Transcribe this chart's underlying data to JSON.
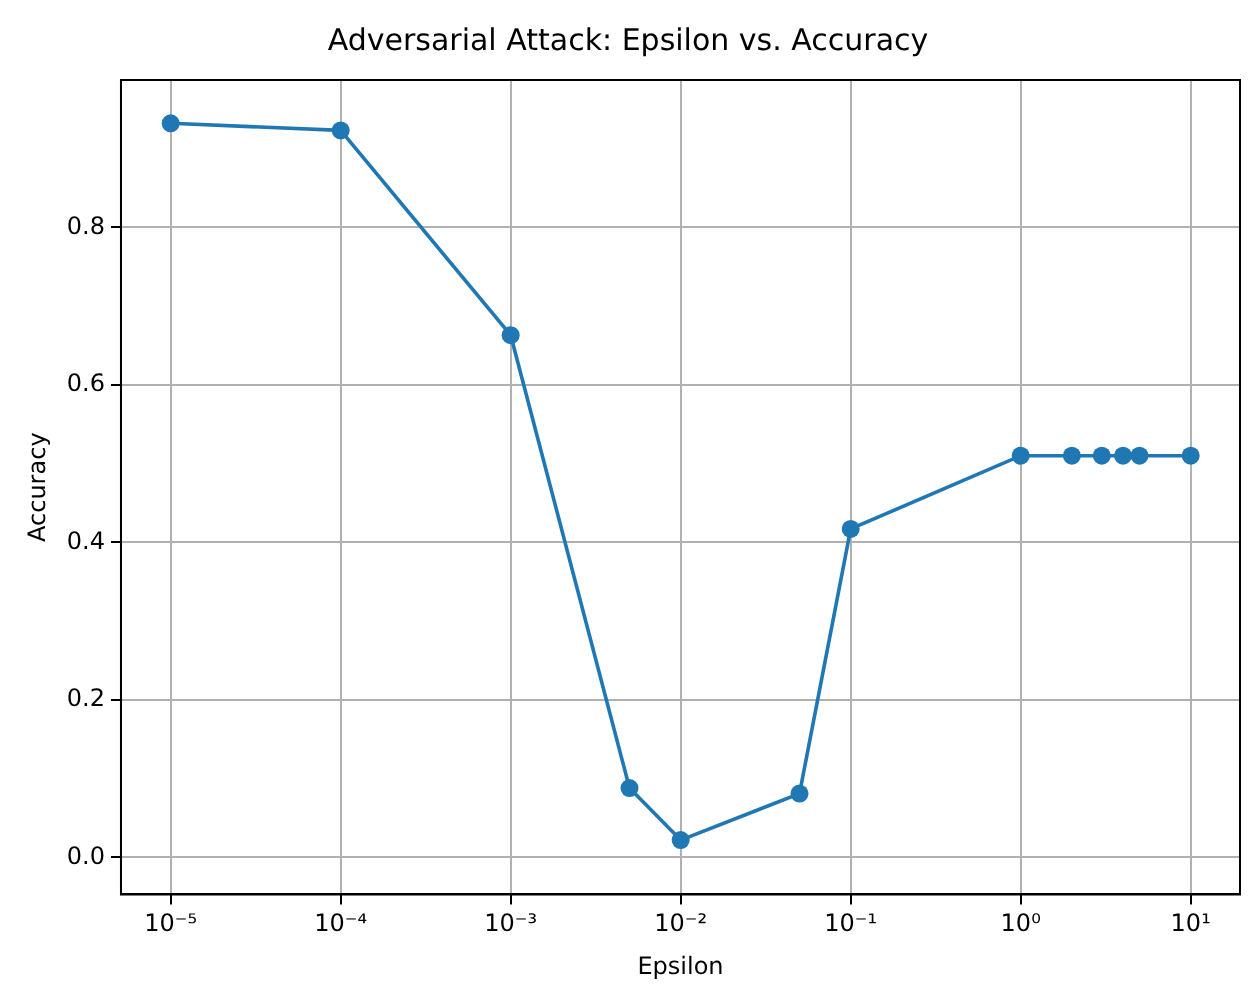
{
  "chart_data": {
    "type": "line",
    "title": "Adversarial Attack: Epsilon vs. Accuracy",
    "xlabel": "Epsilon",
    "ylabel": "Accuracy",
    "x": [
      1e-05,
      0.0001,
      0.001,
      0.005,
      0.01,
      0.05,
      0.1,
      1,
      2,
      3,
      4,
      5,
      10
    ],
    "series": [
      {
        "color": "#1f77b4",
        "values": [
          0.932,
          0.923,
          0.663,
          0.088,
          0.022,
          0.081,
          0.417,
          0.51,
          0.51,
          0.51,
          0.51,
          0.51,
          0.51
        ]
      }
    ],
    "log": "x",
    "xlim": [
      5.1e-06,
      19.5
    ],
    "ylim": [
      -0.047,
      0.987
    ],
    "xticks": [
      {
        "value": 1e-05,
        "label": "10⁻⁵"
      },
      {
        "value": 0.0001,
        "label": "10⁻⁴"
      },
      {
        "value": 0.001,
        "label": "10⁻³"
      },
      {
        "value": 0.01,
        "label": "10⁻²"
      },
      {
        "value": 0.1,
        "label": "10⁻¹"
      },
      {
        "value": 1,
        "label": "10⁰"
      },
      {
        "value": 10,
        "label": "10¹"
      }
    ],
    "yticks": [
      {
        "value": 0,
        "label": "0.0"
      },
      {
        "value": 0.2,
        "label": "0.2"
      },
      {
        "value": 0.4,
        "label": "0.4"
      },
      {
        "value": 0.6,
        "label": "0.6"
      },
      {
        "value": 0.8,
        "label": "0.8"
      }
    ],
    "grid": true,
    "marker": "circle",
    "line_style": "solid"
  }
}
